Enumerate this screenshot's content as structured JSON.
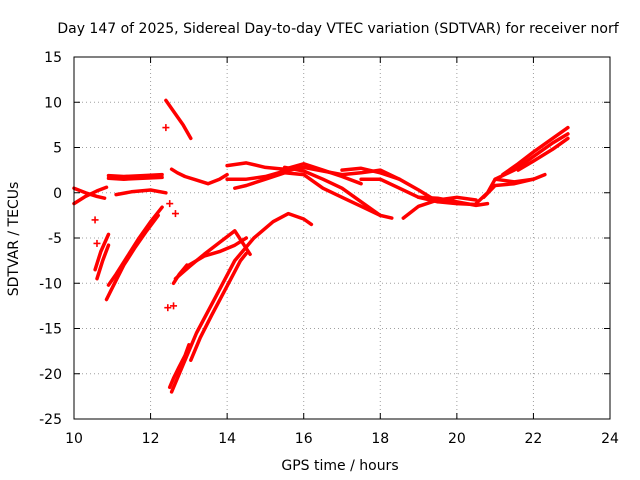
{
  "chart_data": {
    "type": "scatter",
    "title": "Day 147 of 2025, Sidereal Day-to-day VTEC variation (SDTVAR) for receiver norf",
    "xlabel": "GPS time / hours",
    "ylabel": "SDTVAR / TECUs",
    "xlim": [
      10,
      24
    ],
    "ylim": [
      -25,
      15
    ],
    "xticks": [
      10,
      12,
      14,
      16,
      18,
      20,
      22,
      24
    ],
    "yticks": [
      -25,
      -20,
      -15,
      -10,
      -5,
      0,
      5,
      10,
      15
    ],
    "grid": true,
    "marker": "+",
    "color": "#ff0000",
    "series": [
      {
        "name": "arc-1",
        "x": [
          10.0,
          10.3,
          10.6,
          10.85
        ],
        "y": [
          -1.2,
          -0.4,
          0.2,
          0.6
        ]
      },
      {
        "name": "arc-2",
        "x": [
          10.0,
          10.3,
          10.6,
          10.8
        ],
        "y": [
          0.5,
          0.0,
          -0.4,
          -0.6
        ]
      },
      {
        "name": "arc-3",
        "x": [
          10.55,
          10.7,
          10.9
        ],
        "y": [
          -8.5,
          -6.5,
          -4.6
        ]
      },
      {
        "name": "arc-4",
        "x": [
          10.6,
          10.75,
          10.9
        ],
        "y": [
          -9.5,
          -7.5,
          -5.8
        ]
      },
      {
        "name": "arc-5",
        "x": [
          10.85,
          11.0,
          11.3,
          11.6,
          11.9,
          12.2
        ],
        "y": [
          -11.8,
          -10.5,
          -8.0,
          -6.0,
          -4.2,
          -2.5
        ]
      },
      {
        "name": "arc-6",
        "x": [
          10.9,
          11.1,
          11.4,
          11.7,
          12.0,
          12.3
        ],
        "y": [
          -10.2,
          -9.0,
          -7.0,
          -5.0,
          -3.2,
          -1.6
        ]
      },
      {
        "name": "arc-7",
        "x": [
          11.1,
          11.5,
          12.0,
          12.4
        ],
        "y": [
          -0.2,
          0.1,
          0.3,
          0.0
        ]
      },
      {
        "name": "arc-8",
        "x": [
          10.9,
          11.3,
          11.8,
          12.3
        ],
        "y": [
          1.9,
          1.8,
          1.9,
          2.0
        ]
      },
      {
        "name": "arc-9",
        "x": [
          10.9,
          11.3,
          11.8,
          12.3
        ],
        "y": [
          1.6,
          1.5,
          1.6,
          1.7
        ]
      },
      {
        "name": "arc-10",
        "x": [
          12.4,
          12.6,
          12.85,
          13.05
        ],
        "y": [
          10.2,
          9.0,
          7.5,
          6.0
        ]
      },
      {
        "name": "arc-11",
        "x": [
          12.55,
          12.7,
          12.9,
          13.2,
          13.5,
          13.8,
          14.0
        ],
        "y": [
          2.6,
          2.2,
          1.8,
          1.4,
          1.0,
          1.5,
          2.0
        ]
      },
      {
        "name": "arc-12",
        "x": [
          12.55,
          12.8,
          13.2,
          13.7,
          14.2,
          14.7,
          15.2,
          15.6,
          16.0,
          16.2
        ],
        "y": [
          -22.0,
          -19.5,
          -15.5,
          -11.5,
          -7.5,
          -5.0,
          -3.2,
          -2.3,
          -2.9,
          -3.5
        ]
      },
      {
        "name": "arc-13",
        "x": [
          12.6,
          12.75,
          12.95
        ],
        "y": [
          -10.0,
          -9.0,
          -8.0
        ]
      },
      {
        "name": "arc-14",
        "x": [
          12.5,
          12.6,
          12.75,
          12.9,
          13.0
        ],
        "y": [
          -21.5,
          -20.5,
          -19.2,
          -18.0,
          -16.8
        ]
      },
      {
        "name": "arc-15",
        "x": [
          12.65,
          13.0,
          13.4,
          13.8,
          14.2,
          14.6
        ],
        "y": [
          -9.5,
          -8.2,
          -6.8,
          -5.5,
          -4.2,
          -6.8
        ]
      },
      {
        "name": "arc-16",
        "x": [
          13.0,
          13.4,
          13.8,
          14.2,
          14.5
        ],
        "y": [
          -8.0,
          -7.0,
          -6.5,
          -5.8,
          -5.0
        ]
      },
      {
        "name": "arc-17",
        "x": [
          13.05,
          13.3,
          13.6,
          13.85,
          14.1,
          14.35,
          14.5
        ],
        "y": [
          -18.5,
          -16.0,
          -13.5,
          -11.5,
          -9.5,
          -7.5,
          -6.7
        ]
      },
      {
        "name": "arc-18",
        "x": [
          14.0,
          14.5,
          15.0,
          15.5,
          16.0,
          16.5,
          17.0,
          17.5
        ],
        "y": [
          3.0,
          3.3,
          2.8,
          2.6,
          3.2,
          2.5,
          1.8,
          1.0
        ]
      },
      {
        "name": "arc-19",
        "x": [
          14.0,
          14.5,
          15.0,
          15.5,
          16.0,
          16.5,
          17.0,
          17.5,
          18.0,
          18.5
        ],
        "y": [
          1.5,
          1.5,
          1.8,
          2.4,
          2.8,
          2.4,
          2.0,
          2.2,
          2.5,
          1.5
        ]
      },
      {
        "name": "arc-20",
        "x": [
          14.2,
          14.5,
          15.0,
          15.5,
          16.0,
          16.5,
          17.0,
          17.5,
          18.0
        ],
        "y": [
          0.5,
          0.8,
          1.5,
          2.2,
          2.0,
          0.5,
          -0.5,
          -1.5,
          -2.5
        ]
      },
      {
        "name": "arc-21",
        "x": [
          15.5,
          16.0,
          16.5,
          17.0,
          17.5,
          18.0,
          18.3
        ],
        "y": [
          2.8,
          2.4,
          1.5,
          0.5,
          -1.0,
          -2.5,
          -2.8
        ]
      },
      {
        "name": "arc-22",
        "x": [
          17.0,
          17.5,
          18.0,
          18.5,
          19.0,
          19.5
        ],
        "y": [
          2.5,
          2.7,
          2.2,
          1.5,
          0.3,
          -1.0
        ]
      },
      {
        "name": "arc-23",
        "x": [
          17.5,
          18.0,
          18.5,
          19.0,
          19.5,
          20.0,
          20.5
        ],
        "y": [
          1.5,
          1.5,
          0.5,
          -0.5,
          -1.0,
          -1.2,
          -1.3
        ]
      },
      {
        "name": "arc-24",
        "x": [
          18.6,
          19.0,
          19.5,
          20.0,
          20.5
        ],
        "y": [
          -2.8,
          -1.5,
          -0.8,
          -0.5,
          -0.8
        ]
      },
      {
        "name": "arc-25",
        "x": [
          19.0,
          19.5,
          20.0,
          20.5,
          20.8
        ],
        "y": [
          -0.5,
          -0.6,
          -1.0,
          -1.4,
          -1.2
        ]
      },
      {
        "name": "arc-26",
        "x": [
          20.5,
          20.8,
          21.0,
          21.5,
          22.0
        ],
        "y": [
          -1.2,
          0.0,
          1.5,
          1.2,
          1.5
        ]
      },
      {
        "name": "arc-27",
        "x": [
          20.7,
          21.0,
          21.5,
          22.0,
          22.3
        ],
        "y": [
          -0.5,
          0.8,
          1.0,
          1.5,
          2.0
        ]
      },
      {
        "name": "arc-28",
        "x": [
          21.0,
          21.5,
          22.0,
          22.5,
          22.9
        ],
        "y": [
          1.5,
          2.5,
          4.0,
          5.5,
          6.5
        ]
      },
      {
        "name": "arc-29",
        "x": [
          21.2,
          21.6,
          22.0,
          22.5,
          22.9
        ],
        "y": [
          2.0,
          3.2,
          4.5,
          6.0,
          7.2
        ]
      },
      {
        "name": "arc-30",
        "x": [
          21.6,
          22.0,
          22.5,
          22.9
        ],
        "y": [
          2.5,
          3.5,
          4.8,
          6.0
        ]
      }
    ],
    "scatter_points": [
      {
        "x": 10.55,
        "y": -3.0
      },
      {
        "x": 10.6,
        "y": -5.6
      },
      {
        "x": 12.4,
        "y": 7.2
      },
      {
        "x": 12.5,
        "y": -1.2
      },
      {
        "x": 12.65,
        "y": -2.3
      },
      {
        "x": 12.6,
        "y": -12.5
      },
      {
        "x": 12.45,
        "y": -12.7
      }
    ]
  }
}
